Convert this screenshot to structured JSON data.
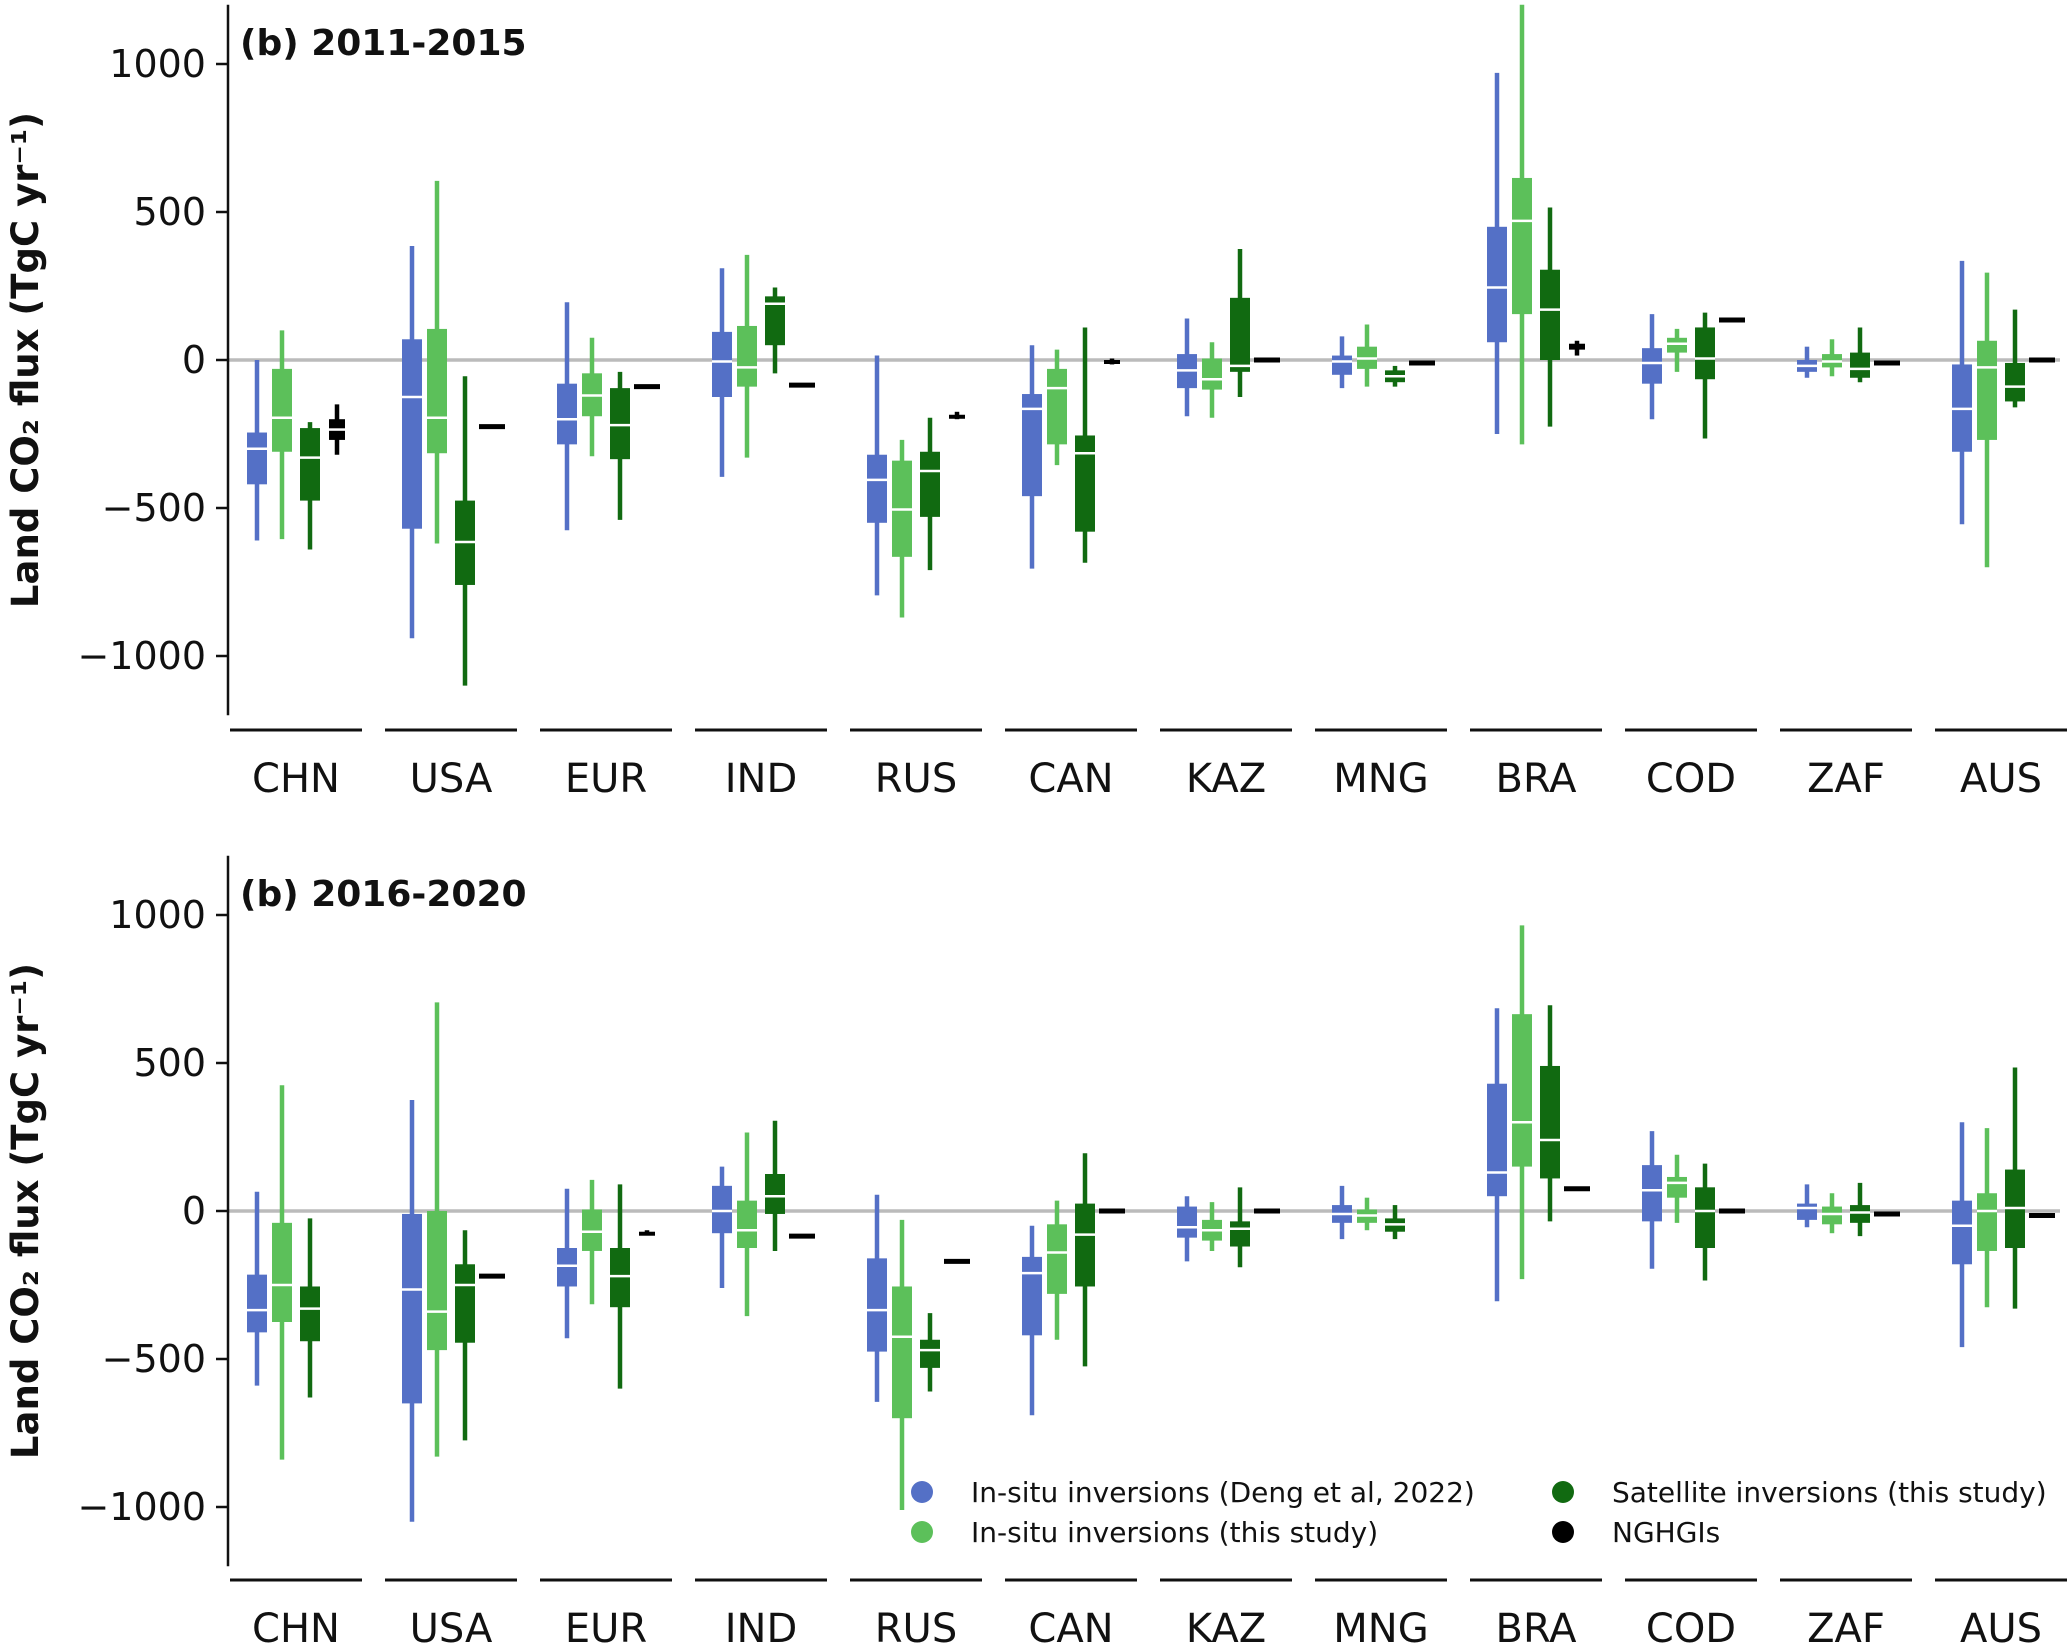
{
  "ylabel": "Land CO₂ flux (TgC yr⁻¹)",
  "colors": {
    "insitu_deng": "#5470c6",
    "insitu_study": "#5cc05a",
    "satellite_study": "#116a11",
    "nghgi": "#000000",
    "zero_line": "#bbbbbb",
    "median": "#ffffff"
  },
  "chart_data": [
    {
      "type": "box",
      "title": "(b) 2011-2015",
      "ylim": [
        -1200,
        1200
      ],
      "yticks": [
        -1000,
        -500,
        0,
        500,
        1000
      ],
      "ytick_labels": [
        "−1000",
        "−500",
        "0",
        "500",
        "1000"
      ],
      "categories": [
        "CHN",
        "USA",
        "EUR",
        "IND",
        "RUS",
        "CAN",
        "KAZ",
        "MNG",
        "BRA",
        "COD",
        "ZAF",
        "AUS"
      ],
      "series": [
        {
          "name": "In-situ inversions (Deng et al, 2022)",
          "boxes": [
            {
              "min": -610,
              "q1": -420,
              "median": -300,
              "q3": -245,
              "max": 0
            },
            {
              "min": -940,
              "q1": -570,
              "median": -125,
              "q3": 70,
              "max": 385
            },
            {
              "min": -575,
              "q1": -285,
              "median": -200,
              "q3": -80,
              "max": 195
            },
            {
              "min": -395,
              "q1": -125,
              "median": -5,
              "q3": 95,
              "max": 310
            },
            {
              "min": -795,
              "q1": -550,
              "median": -405,
              "q3": -320,
              "max": 15
            },
            {
              "min": -705,
              "q1": -460,
              "median": -165,
              "q3": -115,
              "max": 50
            },
            {
              "min": -190,
              "q1": -95,
              "median": -35,
              "q3": 20,
              "max": 140
            },
            {
              "min": -95,
              "q1": -50,
              "median": -5,
              "q3": 15,
              "max": 80
            },
            {
              "min": -250,
              "q1": 60,
              "median": 245,
              "q3": 450,
              "max": 970
            },
            {
              "min": -200,
              "q1": -80,
              "median": -10,
              "q3": 40,
              "max": 155
            },
            {
              "min": -60,
              "q1": -40,
              "median": -20,
              "q3": 0,
              "max": 45
            },
            {
              "min": -555,
              "q1": -310,
              "median": -165,
              "q3": -15,
              "max": 335
            }
          ]
        },
        {
          "name": "In-situ inversions (this study)",
          "boxes": [
            {
              "min": -605,
              "q1": -310,
              "median": -195,
              "q3": -30,
              "max": 100
            },
            {
              "min": -620,
              "q1": -315,
              "median": -195,
              "q3": 105,
              "max": 605
            },
            {
              "min": -325,
              "q1": -190,
              "median": -120,
              "q3": -45,
              "max": 75
            },
            {
              "min": -330,
              "q1": -90,
              "median": -25,
              "q3": 115,
              "max": 355
            },
            {
              "min": -870,
              "q1": -665,
              "median": -505,
              "q3": -340,
              "max": -270
            },
            {
              "min": -355,
              "q1": -285,
              "median": -95,
              "q3": -30,
              "max": 35
            },
            {
              "min": -195,
              "q1": -100,
              "median": -65,
              "q3": 5,
              "max": 60
            },
            {
              "min": -90,
              "q1": -30,
              "median": 5,
              "q3": 45,
              "max": 120
            },
            {
              "min": -285,
              "q1": 155,
              "median": 470,
              "q3": 615,
              "max": 1200
            },
            {
              "min": -40,
              "q1": 25,
              "median": 55,
              "q3": 75,
              "max": 105
            },
            {
              "min": -55,
              "q1": -25,
              "median": -5,
              "q3": 20,
              "max": 70
            },
            {
              "min": -700,
              "q1": -270,
              "median": -25,
              "q3": 65,
              "max": 295
            }
          ]
        },
        {
          "name": "Satellite inversions (this study)",
          "boxes": [
            {
              "min": -640,
              "q1": -475,
              "median": -330,
              "q3": -230,
              "max": -210
            },
            {
              "min": -1100,
              "q1": -760,
              "median": -615,
              "q3": -475,
              "max": -55
            },
            {
              "min": -540,
              "q1": -335,
              "median": -220,
              "q3": -95,
              "max": -40
            },
            {
              "min": -45,
              "q1": 50,
              "median": 190,
              "q3": 215,
              "max": 245
            },
            {
              "min": -710,
              "q1": -530,
              "median": -375,
              "q3": -310,
              "max": -195
            },
            {
              "min": -685,
              "q1": -580,
              "median": -315,
              "q3": -255,
              "max": 110
            },
            {
              "min": -125,
              "q1": -40,
              "median": -20,
              "q3": 210,
              "max": 375
            },
            {
              "min": -90,
              "q1": -75,
              "median": -55,
              "q3": -35,
              "max": -20
            },
            {
              "min": -225,
              "q1": 0,
              "median": 170,
              "q3": 305,
              "max": 515
            },
            {
              "min": -265,
              "q1": -65,
              "median": 5,
              "q3": 110,
              "max": 160
            },
            {
              "min": -75,
              "q1": -60,
              "median": -30,
              "q3": 25,
              "max": 110
            },
            {
              "min": -160,
              "q1": -140,
              "median": -90,
              "q3": -10,
              "max": 170
            }
          ]
        },
        {
          "name": "NGHGIs",
          "boxes": [
            {
              "min": -320,
              "q1": -270,
              "median": -235,
              "q3": -200,
              "max": -150
            },
            {
              "min": -225,
              "q1": -225,
              "median": -225,
              "q3": -225,
              "max": -225
            },
            {
              "min": -90,
              "q1": -90,
              "median": -90,
              "q3": -90,
              "max": -90
            },
            {
              "min": -85,
              "q1": -85,
              "median": -85,
              "q3": -85,
              "max": -85
            },
            {
              "min": -200,
              "q1": -195,
              "median": -190,
              "q3": -185,
              "max": -175
            },
            {
              "min": -15,
              "q1": -10,
              "median": -5,
              "q3": 0,
              "max": 5
            },
            {
              "min": 0,
              "q1": 0,
              "median": 0,
              "q3": 0,
              "max": 0
            },
            {
              "min": -10,
              "q1": -10,
              "median": -10,
              "q3": -10,
              "max": -10
            },
            {
              "min": 15,
              "q1": 35,
              "median": 45,
              "q3": 55,
              "max": 65
            },
            {
              "min": 135,
              "q1": 135,
              "median": 135,
              "q3": 135,
              "max": 135
            },
            {
              "min": -10,
              "q1": -10,
              "median": -10,
              "q3": -10,
              "max": -10
            },
            {
              "min": 0,
              "q1": 0,
              "median": 0,
              "q3": 0,
              "max": 0
            }
          ]
        }
      ]
    },
    {
      "type": "box",
      "title": "(b) 2016-2020",
      "ylim": [
        -1200,
        1200
      ],
      "yticks": [
        -1000,
        -500,
        0,
        500,
        1000
      ],
      "ytick_labels": [
        "−1000",
        "−500",
        "0",
        "500",
        "1000"
      ],
      "categories": [
        "CHN",
        "USA",
        "EUR",
        "IND",
        "RUS",
        "CAN",
        "KAZ",
        "MNG",
        "BRA",
        "COD",
        "ZAF",
        "AUS"
      ],
      "series": [
        {
          "name": "In-situ inversions (Deng et al, 2022)",
          "boxes": [
            {
              "min": -590,
              "q1": -410,
              "median": -335,
              "q3": -215,
              "max": 65
            },
            {
              "min": -1050,
              "q1": -650,
              "median": -265,
              "q3": -10,
              "max": 375
            },
            {
              "min": -430,
              "q1": -255,
              "median": -185,
              "q3": -125,
              "max": 75
            },
            {
              "min": -260,
              "q1": -75,
              "median": 0,
              "q3": 85,
              "max": 150
            },
            {
              "min": -645,
              "q1": -475,
              "median": -335,
              "q3": -160,
              "max": 55
            },
            {
              "min": -690,
              "q1": -420,
              "median": -210,
              "q3": -155,
              "max": -50
            },
            {
              "min": -170,
              "q1": -90,
              "median": -55,
              "q3": 15,
              "max": 50
            },
            {
              "min": -95,
              "q1": -40,
              "median": -10,
              "q3": 20,
              "max": 85
            },
            {
              "min": -305,
              "q1": 50,
              "median": 130,
              "q3": 430,
              "max": 685
            },
            {
              "min": -195,
              "q1": -35,
              "median": 70,
              "q3": 155,
              "max": 270
            },
            {
              "min": -55,
              "q1": -30,
              "median": 10,
              "q3": 25,
              "max": 90
            },
            {
              "min": -460,
              "q1": -180,
              "median": -50,
              "q3": 35,
              "max": 300
            }
          ]
        },
        {
          "name": "In-situ inversions (this study)",
          "boxes": [
            {
              "min": -840,
              "q1": -375,
              "median": -250,
              "q3": -40,
              "max": 425
            },
            {
              "min": -830,
              "q1": -470,
              "median": -340,
              "q3": 0,
              "max": 705
            },
            {
              "min": -315,
              "q1": -135,
              "median": -70,
              "q3": 5,
              "max": 105
            },
            {
              "min": -355,
              "q1": -125,
              "median": -65,
              "q3": 35,
              "max": 265
            },
            {
              "min": -1010,
              "q1": -700,
              "median": -425,
              "q3": -255,
              "max": -30
            },
            {
              "min": -435,
              "q1": -280,
              "median": -140,
              "q3": -45,
              "max": 35
            },
            {
              "min": -135,
              "q1": -100,
              "median": -65,
              "q3": -30,
              "max": 30
            },
            {
              "min": -65,
              "q1": -40,
              "median": -15,
              "q3": 5,
              "max": 45
            },
            {
              "min": -230,
              "q1": 150,
              "median": 300,
              "q3": 665,
              "max": 965
            },
            {
              "min": -40,
              "q1": 45,
              "median": 95,
              "q3": 115,
              "max": 190
            },
            {
              "min": -75,
              "q1": -45,
              "median": -10,
              "q3": 15,
              "max": 60
            },
            {
              "min": -325,
              "q1": -135,
              "median": 0,
              "q3": 60,
              "max": 280
            }
          ]
        },
        {
          "name": "Satellite inversions (this study)",
          "boxes": [
            {
              "min": -630,
              "q1": -440,
              "median": -330,
              "q3": -255,
              "max": -25
            },
            {
              "min": -775,
              "q1": -445,
              "median": -250,
              "q3": -180,
              "max": -65
            },
            {
              "min": -600,
              "q1": -325,
              "median": -220,
              "q3": -125,
              "max": 90
            },
            {
              "min": -135,
              "q1": -10,
              "median": 50,
              "q3": 125,
              "max": 305
            },
            {
              "min": -610,
              "q1": -530,
              "median": -470,
              "q3": -435,
              "max": -345
            },
            {
              "min": -525,
              "q1": -255,
              "median": -80,
              "q3": 25,
              "max": 195
            },
            {
              "min": -190,
              "q1": -120,
              "median": -60,
              "q3": -35,
              "max": 80
            },
            {
              "min": -95,
              "q1": -70,
              "median": -45,
              "q3": -25,
              "max": 20
            },
            {
              "min": -35,
              "q1": 110,
              "median": 240,
              "q3": 490,
              "max": 695
            },
            {
              "min": -235,
              "q1": -125,
              "median": 0,
              "q3": 80,
              "max": 160
            },
            {
              "min": -85,
              "q1": -40,
              "median": -5,
              "q3": 20,
              "max": 95
            },
            {
              "min": -330,
              "q1": -125,
              "median": 10,
              "q3": 140,
              "max": 485
            }
          ]
        },
        {
          "name": "NGHGIs",
          "boxes": [
            null,
            {
              "min": -220,
              "q1": -220,
              "median": -220,
              "q3": -220,
              "max": -220
            },
            {
              "min": -75,
              "q1": -70,
              "median": -70,
              "q3": -70,
              "max": -65
            },
            {
              "min": -85,
              "q1": -85,
              "median": -85,
              "q3": -85,
              "max": -85
            },
            {
              "min": -170,
              "q1": -170,
              "median": -170,
              "q3": -170,
              "max": -170
            },
            {
              "min": 0,
              "q1": 0,
              "median": 0,
              "q3": 0,
              "max": 0
            },
            {
              "min": 0,
              "q1": 0,
              "median": 0,
              "q3": 0,
              "max": 0
            },
            null,
            {
              "min": 75,
              "q1": 75,
              "median": 75,
              "q3": 75,
              "max": 75
            },
            {
              "min": 0,
              "q1": 0,
              "median": 0,
              "q3": 0,
              "max": 0
            },
            {
              "min": -10,
              "q1": -10,
              "median": -10,
              "q3": -10,
              "max": -10
            },
            {
              "min": -15,
              "q1": -15,
              "median": -15,
              "q3": -15,
              "max": -15
            }
          ]
        }
      ]
    }
  ]
}
